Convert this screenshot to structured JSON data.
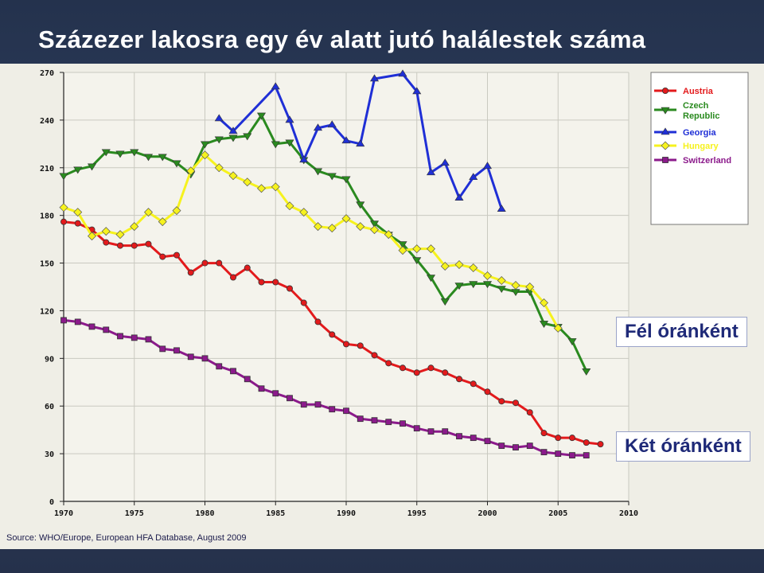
{
  "slide": {
    "title": "Százezer lakosra egy év alatt jutó halálestek száma",
    "source": "Source: WHO/Europe, European HFA Database, August 2009",
    "callouts": {
      "half_hourly": "Fél óránként",
      "two_hourly": "Két óránként"
    }
  },
  "colors": {
    "Austria": "#e31a1c",
    "Czech Republic": "#2a8a1f",
    "Georgia": "#1f2fd6",
    "Hungary": "#f6f21e",
    "Switzerland": "#8b1a8b"
  },
  "chart_data": {
    "type": "line",
    "title": "",
    "xlabel": "",
    "ylabel": "",
    "xlim": [
      1970,
      2010
    ],
    "ylim": [
      0,
      270
    ],
    "x_ticks": [
      1970,
      1975,
      1980,
      1985,
      1990,
      1995,
      2000,
      2005,
      2010
    ],
    "y_ticks": [
      0,
      30,
      60,
      90,
      120,
      150,
      180,
      210,
      240,
      270
    ],
    "grid": true,
    "legend_position": "top-right",
    "series": [
      {
        "name": "Austria",
        "marker": "circle",
        "x": [
          1970,
          1971,
          1972,
          1973,
          1974,
          1975,
          1976,
          1977,
          1978,
          1979,
          1980,
          1981,
          1982,
          1983,
          1984,
          1985,
          1986,
          1987,
          1988,
          1989,
          1990,
          1991,
          1992,
          1993,
          1994,
          1995,
          1996,
          1997,
          1998,
          1999,
          2000,
          2001,
          2002,
          2003,
          2004,
          2005,
          2006,
          2007,
          2008
        ],
        "y": [
          176,
          175,
          171,
          163,
          161,
          161,
          162,
          154,
          155,
          144,
          150,
          150,
          141,
          147,
          138,
          138,
          134,
          125,
          113,
          105,
          99,
          98,
          92,
          87,
          84,
          81,
          84,
          81,
          77,
          74,
          69,
          63,
          62,
          56,
          43,
          40,
          40,
          37,
          36
        ]
      },
      {
        "name": "Czech Republic",
        "marker": "triangle-down",
        "x": [
          1970,
          1971,
          1972,
          1973,
          1974,
          1975,
          1976,
          1977,
          1978,
          1979,
          1980,
          1981,
          1982,
          1983,
          1984,
          1985,
          1986,
          1987,
          1988,
          1989,
          1990,
          1991,
          1992,
          1993,
          1994,
          1995,
          1996,
          1997,
          1998,
          1999,
          2000,
          2001,
          2002,
          2003,
          2004,
          2005,
          2006,
          2007
        ],
        "y": [
          205,
          209,
          211,
          220,
          219,
          220,
          217,
          217,
          213,
          206,
          225,
          228,
          229,
          230,
          243,
          225,
          226,
          215,
          208,
          205,
          203,
          187,
          175,
          168,
          162,
          152,
          141,
          126,
          136,
          137,
          137,
          134,
          132,
          132,
          112,
          110,
          101,
          82
        ]
      },
      {
        "name": "Georgia",
        "marker": "triangle-up",
        "x": [
          1981,
          1982,
          1985,
          1986,
          1987,
          1988,
          1989,
          1990,
          1991,
          1992,
          1994,
          1995,
          1996,
          1997,
          1998,
          1999,
          2000,
          2001
        ],
        "y": [
          241,
          233,
          261,
          240,
          215,
          235,
          237,
          227,
          225,
          266,
          269,
          258,
          207,
          213,
          191,
          204,
          211,
          184
        ]
      },
      {
        "name": "Hungary",
        "marker": "diamond",
        "x": [
          1970,
          1971,
          1972,
          1973,
          1974,
          1975,
          1976,
          1977,
          1978,
          1979,
          1980,
          1981,
          1982,
          1983,
          1984,
          1985,
          1986,
          1987,
          1988,
          1989,
          1990,
          1991,
          1992,
          1993,
          1994,
          1995,
          1996,
          1997,
          1998,
          1999,
          2000,
          2001,
          2002,
          2003,
          2004,
          2005
        ],
        "y": [
          185,
          182,
          167,
          170,
          168,
          173,
          182,
          176,
          183,
          208,
          218,
          210,
          205,
          201,
          197,
          198,
          186,
          182,
          173,
          172,
          178,
          173,
          171,
          168,
          158,
          159,
          159,
          148,
          149,
          147,
          142,
          139,
          136,
          135,
          125,
          109
        ]
      },
      {
        "name": "Switzerland",
        "marker": "square",
        "x": [
          1970,
          1971,
          1972,
          1973,
          1974,
          1975,
          1976,
          1977,
          1978,
          1979,
          1980,
          1981,
          1982,
          1983,
          1984,
          1985,
          1986,
          1987,
          1988,
          1989,
          1990,
          1991,
          1992,
          1993,
          1994,
          1995,
          1996,
          1997,
          1998,
          1999,
          2000,
          2001,
          2002,
          2003,
          2004,
          2005,
          2006,
          2007
        ],
        "y": [
          114,
          113,
          110,
          108,
          104,
          103,
          102,
          96,
          95,
          91,
          90,
          85,
          82,
          77,
          71,
          68,
          65,
          61,
          61,
          58,
          57,
          52,
          51,
          50,
          49,
          46,
          44,
          44,
          41,
          40,
          38,
          35,
          34,
          35,
          31,
          30,
          29,
          29
        ]
      }
    ]
  }
}
